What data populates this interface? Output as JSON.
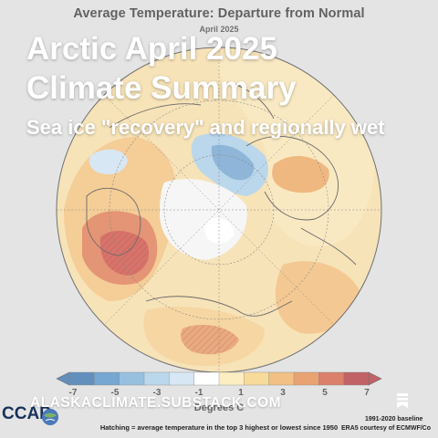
{
  "map": {
    "title": "Average Temperature: Departure from Normal",
    "subtitle": "April 2025",
    "colorbar": {
      "ticks": [
        "-7",
        "-5",
        "-3",
        "-1",
        "1",
        "3",
        "5",
        "7"
      ],
      "colors": [
        "#1f5fa0",
        "#3a82bf",
        "#6aa5d2",
        "#9cc6e3",
        "#c6ddee",
        "#ffffff",
        "#fbe7a6",
        "#f5cc70",
        "#eca550",
        "#e07a36",
        "#cb4a2b",
        "#a51f25"
      ],
      "units": "Degrees C"
    },
    "hatching_note": "Hatching = average temperature in the top 3 highest or lowest since 1950",
    "baseline": "1991-2020 baseline",
    "courtesy": "ERA5 courtesy of ECMWF/Co"
  },
  "overlay": {
    "headline_line1": "Arctic April 2025",
    "headline_line2": "Climate Summary",
    "subhead": "Sea ice \"recovery\" and regionally wet",
    "site": "ALASKACLIMATE.SUBSTACK.COM"
  },
  "logo": {
    "text": "CCAP",
    "icon": "globe-icon"
  },
  "bookmark": {
    "icon": "bookmark-icon"
  }
}
